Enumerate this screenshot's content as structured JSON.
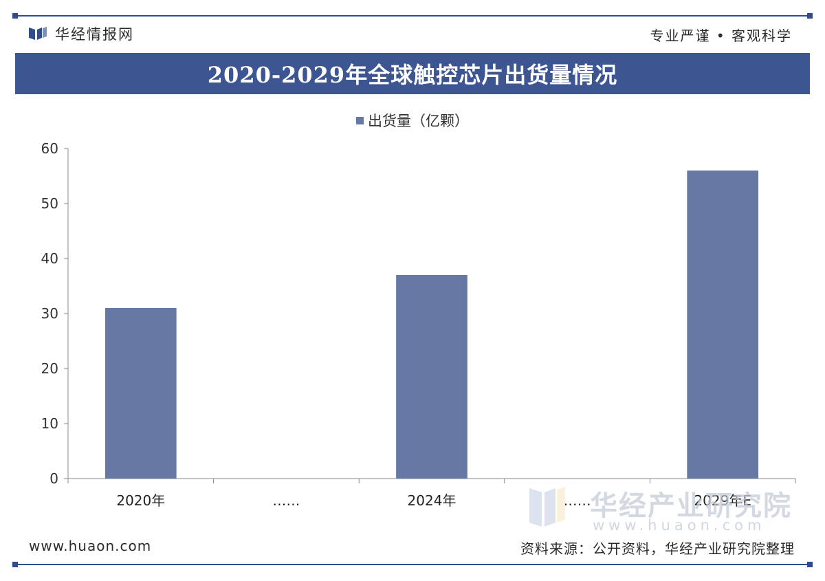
{
  "header": {
    "brand_name": "华经情报网",
    "slogan": "专业严谨 • 客观科学"
  },
  "title": "2020-2029年全球触控芯片出货量情况",
  "colors": {
    "bar": "#6579a4",
    "title_bar": "#3d5692",
    "frame_line": "#2f4d8a"
  },
  "chart_data": {
    "type": "bar",
    "title": "2020-2029年全球触控芯片出货量情况",
    "categories": [
      "2020年",
      "……",
      "2024年",
      "……",
      "2029年E"
    ],
    "series": [
      {
        "name": "出货量（亿颗）",
        "values": [
          31,
          null,
          37,
          null,
          56
        ]
      }
    ],
    "legend_label": "出货量（亿颗）",
    "yticks": [
      "0",
      "10",
      "20",
      "30",
      "40",
      "50",
      "60"
    ],
    "ylim": [
      0,
      60
    ],
    "legend": "top-center",
    "grid": false
  },
  "footer": {
    "website": "www.huaon.com",
    "source": "资料来源：公开资料，华经产业研究院整理"
  },
  "watermark": {
    "name": "华经产业研究院",
    "url": "www.huaon.com"
  }
}
